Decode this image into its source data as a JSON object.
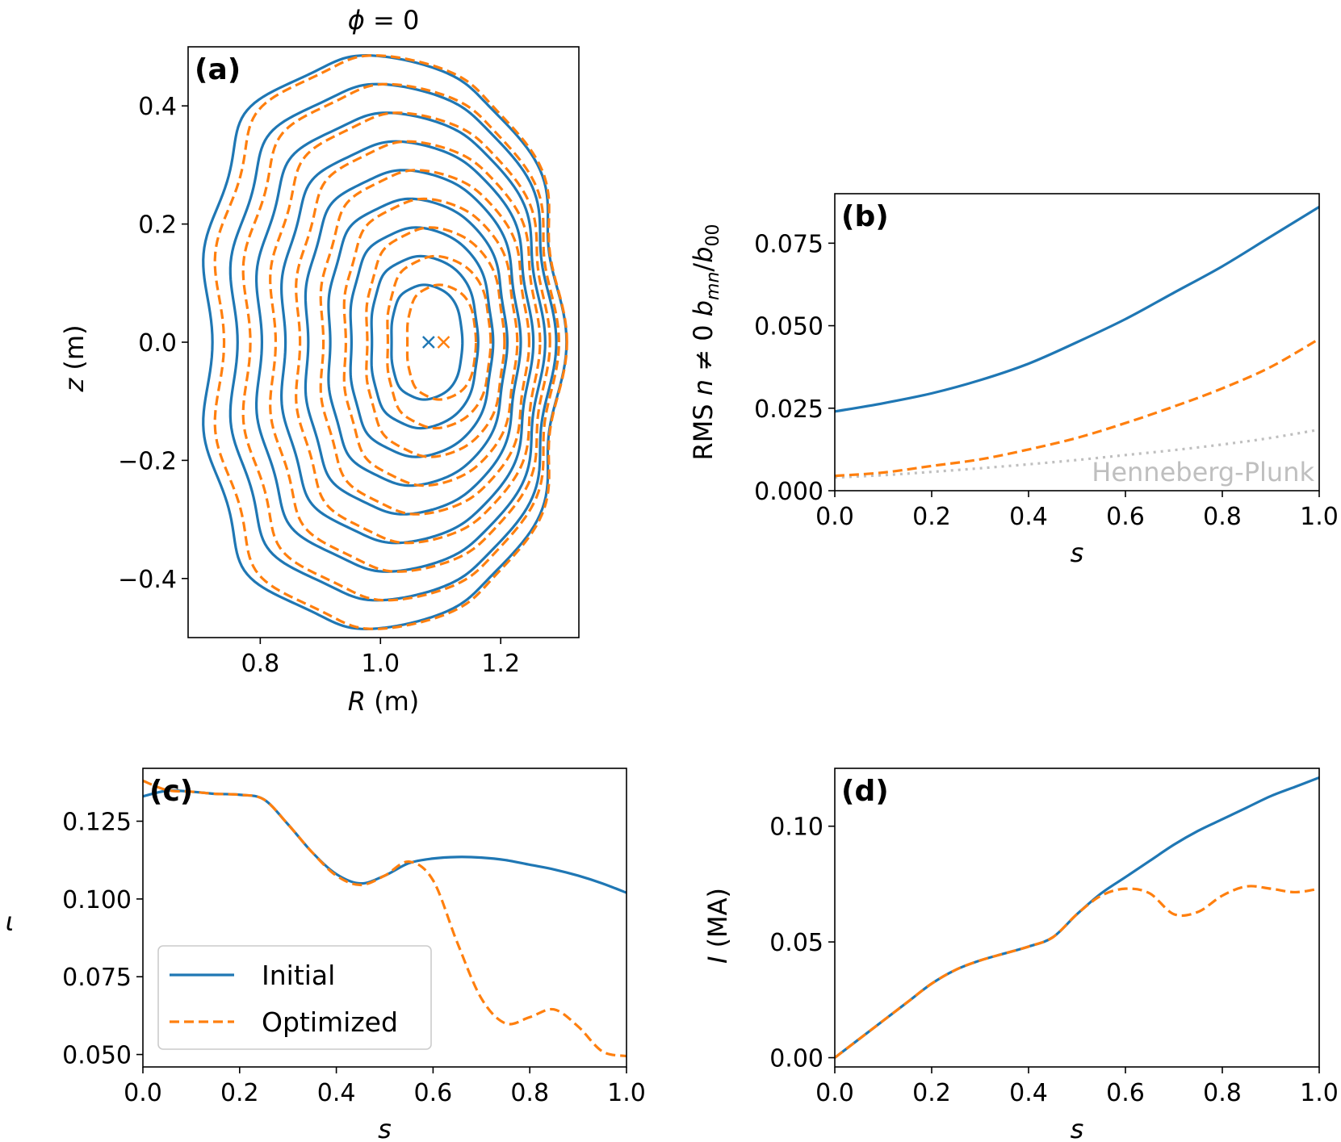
{
  "colors": {
    "initial": "#1f77b4",
    "optimized": "#ff7f0e",
    "hp": "#bfbfbf"
  },
  "legend": {
    "initial": "Initial",
    "optimized": "Optimized"
  },
  "chart_data": [
    {
      "id": "a",
      "type": "line",
      "panel_label": "(a)",
      "title_sym": "ϕ",
      "title_rest": " = 0",
      "xlabel_sym": "R",
      "xlabel_rest": " (m)",
      "ylabel_sym": "z",
      "ylabel_rest": " (m)",
      "xlim": [
        0.68,
        1.33
      ],
      "ylim": [
        -0.5,
        0.5
      ],
      "xticks": [
        0.8,
        1.0,
        1.2
      ],
      "xtick_labels": [
        "0.8",
        "1.0",
        "1.2"
      ],
      "yticks": [
        -0.4,
        -0.2,
        0.0,
        0.2,
        0.4
      ],
      "ytick_labels": [
        "−0.4",
        "−0.2",
        "0.0",
        "0.2",
        "0.4"
      ],
      "axis_initial": [
        1.08,
        0.0
      ],
      "axis_optimized": [
        1.105,
        0.0
      ],
      "surface_levels": [
        0.2,
        0.3,
        0.4,
        0.5,
        0.6,
        0.7,
        0.8,
        0.9,
        1.0
      ],
      "boundary_initial": {
        "r0": 1.005,
        "a": 0.315,
        "kappa": 1.53,
        "delta": 0.06,
        "square": 0.13,
        "ripple": 0.01
      },
      "boundary_optimized": {
        "r0": 1.015,
        "a": 0.305,
        "kappa": 1.58,
        "delta": 0.05,
        "square": 0.13,
        "ripple": 0.01
      }
    },
    {
      "id": "b",
      "type": "line",
      "panel_label": "(b)",
      "ylabel_parts": [
        "RMS ",
        "n",
        " ≠ 0 ",
        "b",
        "mn",
        "/",
        "b",
        "00"
      ],
      "xlabel": "s",
      "xlim": [
        0.0,
        1.0
      ],
      "ylim": [
        0.0,
        0.09
      ],
      "xticks": [
        0.0,
        0.2,
        0.4,
        0.6,
        0.8,
        1.0
      ],
      "xtick_labels": [
        "0.0",
        "0.2",
        "0.4",
        "0.6",
        "0.8",
        "1.0"
      ],
      "yticks": [
        0.0,
        0.025,
        0.05,
        0.075
      ],
      "ytick_labels": [
        "0.000",
        "0.025",
        "0.050",
        "0.075"
      ],
      "annotation": "Henneberg-Plunk",
      "x": [
        0.0,
        0.1,
        0.2,
        0.3,
        0.4,
        0.5,
        0.6,
        0.7,
        0.8,
        0.9,
        1.0
      ],
      "series": [
        {
          "name": "Initial",
          "style": "solid",
          "values": [
            0.024,
            0.0265,
            0.0295,
            0.0335,
            0.0385,
            0.045,
            0.052,
            0.06,
            0.068,
            0.077,
            0.086
          ]
        },
        {
          "name": "Optimized",
          "style": "dashed",
          "values": [
            0.0045,
            0.0055,
            0.0075,
            0.0095,
            0.0125,
            0.016,
            0.0205,
            0.0255,
            0.031,
            0.0375,
            0.046
          ]
        },
        {
          "name": "Henneberg-Plunk",
          "style": "dotted",
          "values": [
            0.004,
            0.0047,
            0.0057,
            0.0068,
            0.008,
            0.0093,
            0.0108,
            0.0123,
            0.014,
            0.016,
            0.0185
          ]
        }
      ]
    },
    {
      "id": "c",
      "type": "line",
      "panel_label": "(c)",
      "ylabel": "ι",
      "xlabel": "s",
      "xlim": [
        0.0,
        1.0
      ],
      "ylim": [
        0.046,
        0.142
      ],
      "xticks": [
        0.0,
        0.2,
        0.4,
        0.6,
        0.8,
        1.0
      ],
      "xtick_labels": [
        "0.0",
        "0.2",
        "0.4",
        "0.6",
        "0.8",
        "1.0"
      ],
      "yticks": [
        0.05,
        0.075,
        0.1,
        0.125
      ],
      "ytick_labels": [
        "0.050",
        "0.075",
        "0.100",
        "0.125"
      ],
      "x": [
        0.0,
        0.05,
        0.1,
        0.15,
        0.2,
        0.25,
        0.3,
        0.35,
        0.4,
        0.45,
        0.5,
        0.55,
        0.6,
        0.65,
        0.7,
        0.75,
        0.8,
        0.85,
        0.9,
        0.95,
        1.0
      ],
      "series": [
        {
          "name": "Initial",
          "style": "solid",
          "values": [
            0.133,
            0.1348,
            0.1345,
            0.1338,
            0.1335,
            0.132,
            0.124,
            0.115,
            0.108,
            0.105,
            0.1075,
            0.1115,
            0.113,
            0.1135,
            0.1133,
            0.1125,
            0.111,
            0.1095,
            0.1075,
            0.105,
            0.102
          ]
        },
        {
          "name": "Optimized",
          "style": "dashed",
          "values": [
            0.138,
            0.135,
            0.1345,
            0.1338,
            0.1335,
            0.132,
            0.124,
            0.115,
            0.1075,
            0.1045,
            0.1075,
            0.112,
            0.106,
            0.086,
            0.068,
            0.06,
            0.062,
            0.0645,
            0.059,
            0.051,
            0.0495
          ]
        }
      ]
    },
    {
      "id": "d",
      "type": "line",
      "panel_label": "(d)",
      "ylabel_sym": "I",
      "ylabel_rest": " (MA)",
      "xlabel": "s",
      "xlim": [
        0.0,
        1.0
      ],
      "ylim": [
        -0.004,
        0.125
      ],
      "xticks": [
        0.0,
        0.2,
        0.4,
        0.6,
        0.8,
        1.0
      ],
      "xtick_labels": [
        "0.0",
        "0.2",
        "0.4",
        "0.6",
        "0.8",
        "1.0"
      ],
      "yticks": [
        0.0,
        0.05,
        0.1
      ],
      "ytick_labels": [
        "0.00",
        "0.05",
        "0.10"
      ],
      "x": [
        0.0,
        0.05,
        0.1,
        0.15,
        0.2,
        0.25,
        0.3,
        0.35,
        0.4,
        0.45,
        0.5,
        0.55,
        0.6,
        0.65,
        0.7,
        0.75,
        0.8,
        0.85,
        0.9,
        0.95,
        1.0
      ],
      "series": [
        {
          "name": "Initial",
          "style": "solid",
          "values": [
            0.0,
            0.008,
            0.016,
            0.024,
            0.032,
            0.038,
            0.042,
            0.045,
            0.048,
            0.052,
            0.062,
            0.071,
            0.078,
            0.085,
            0.092,
            0.098,
            0.103,
            0.108,
            0.113,
            0.117,
            0.121
          ]
        },
        {
          "name": "Optimized",
          "style": "dashed",
          "values": [
            0.0,
            0.008,
            0.016,
            0.024,
            0.032,
            0.038,
            0.042,
            0.045,
            0.048,
            0.052,
            0.062,
            0.07,
            0.073,
            0.071,
            0.062,
            0.063,
            0.07,
            0.074,
            0.073,
            0.0715,
            0.073
          ]
        }
      ]
    }
  ]
}
